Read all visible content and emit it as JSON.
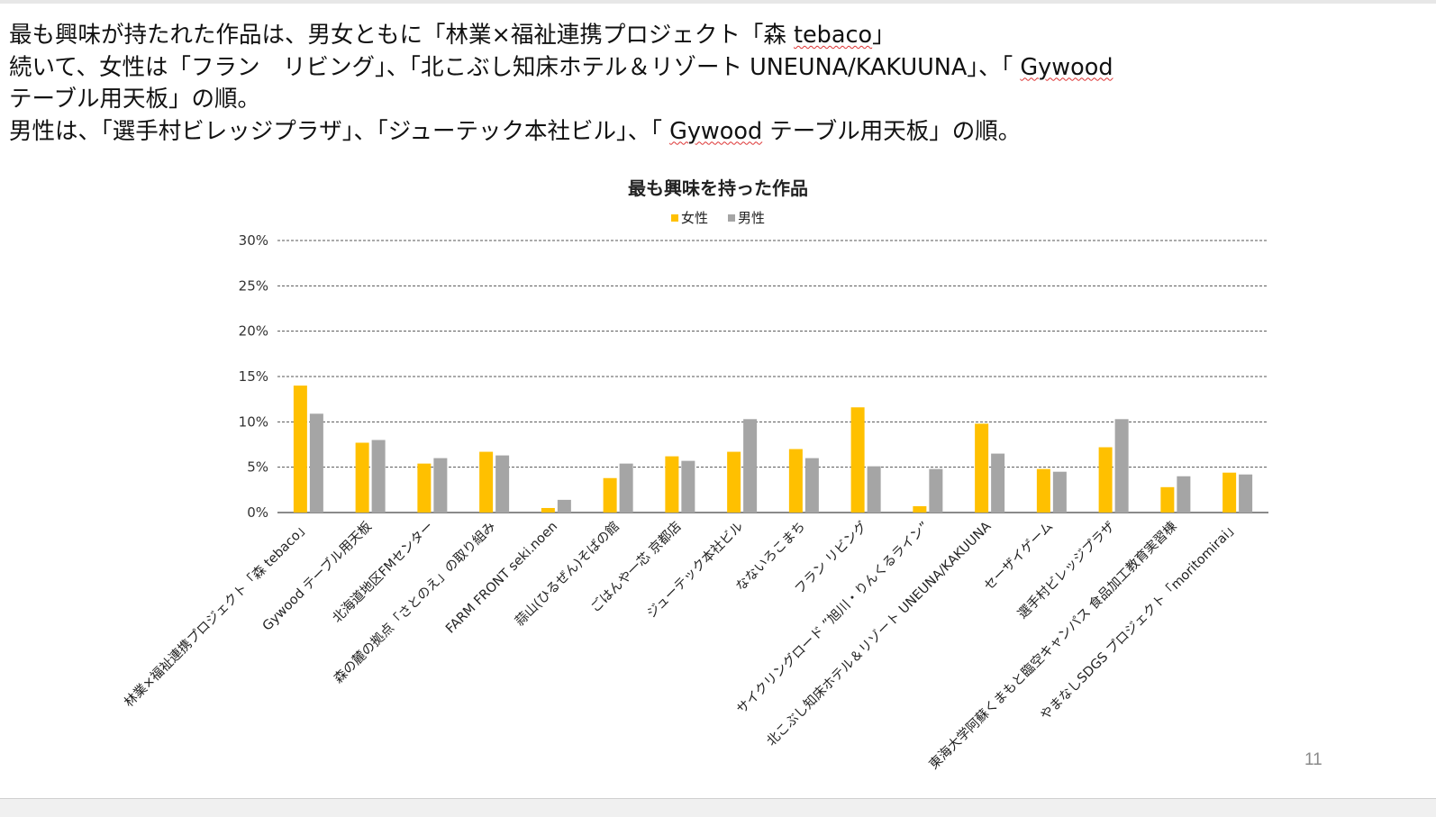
{
  "slide": {
    "lines": [
      {
        "parts": [
          {
            "text": "最も興味が持たれた作品は、男女ともに「林業×福祉連携プロジェクト「森 "
          },
          {
            "text": "tebaco",
            "squiggle": true
          },
          {
            "text": "」"
          }
        ]
      },
      {
        "parts": [
          {
            "text": "続いて、女性は「フラン　リビング」、「北こぶし知床ホテル＆リゾート UNEUNA/KAKUUNA」、「 "
          },
          {
            "text": "Gywood",
            "squiggle": true
          }
        ]
      },
      {
        "parts": [
          {
            "text": "テーブル用天板」の順。"
          }
        ]
      },
      {
        "parts": [
          {
            "text": "男性は、「選手村ビレッジプラザ」、「ジューテック本社ビル」、「 "
          },
          {
            "text": "Gywood",
            "squiggle": true
          },
          {
            "text": " テーブル用天板」の順。"
          }
        ]
      }
    ],
    "page_number": "11"
  },
  "chart_data": {
    "type": "bar",
    "title": "最も興味を持った作品",
    "legend_position": "top",
    "grid": true,
    "ylim": [
      0,
      30
    ],
    "yticks": [
      "0%",
      "5%",
      "10%",
      "15%",
      "20%",
      "25%",
      "30%"
    ],
    "categories": [
      "林業×福祉連携プロジェクト「森 tebaco」",
      "Gywood テーブル用天板",
      "北海道地区FMセンター",
      "森の麓の拠点「さとのえ」の取り組み",
      "FARM FRONT seki.noen",
      "蒜山(ひるぜん)そばの館",
      "ごはんや一芯 京都店",
      "ジューテック本社ビル",
      "なないろこまち",
      "フラン リビング",
      "サイクリングロード ”旭川・りんくるライン”",
      "北こぶし知床ホテル＆リゾート UNEUNA/KAKUUNA",
      "セーザイゲーム",
      "選手村ビレッジプラザ",
      "東海大学阿蘇くまもと臨空キャンパス 食品加工教育実習棟",
      "やまなしSDGS プロジェクト「moritomirai」"
    ],
    "series": [
      {
        "name": "女性",
        "color": "#FFC000",
        "values": [
          14.0,
          7.7,
          5.4,
          6.7,
          0.5,
          3.8,
          6.2,
          6.7,
          7.0,
          11.6,
          0.7,
          9.8,
          4.8,
          7.2,
          2.8,
          4.4
        ]
      },
      {
        "name": "男性",
        "color": "#A5A5A5",
        "values": [
          10.9,
          8.0,
          6.0,
          6.3,
          1.4,
          5.4,
          5.7,
          10.3,
          6.0,
          5.1,
          4.8,
          6.5,
          4.5,
          10.3,
          4.0,
          4.2
        ]
      }
    ]
  }
}
